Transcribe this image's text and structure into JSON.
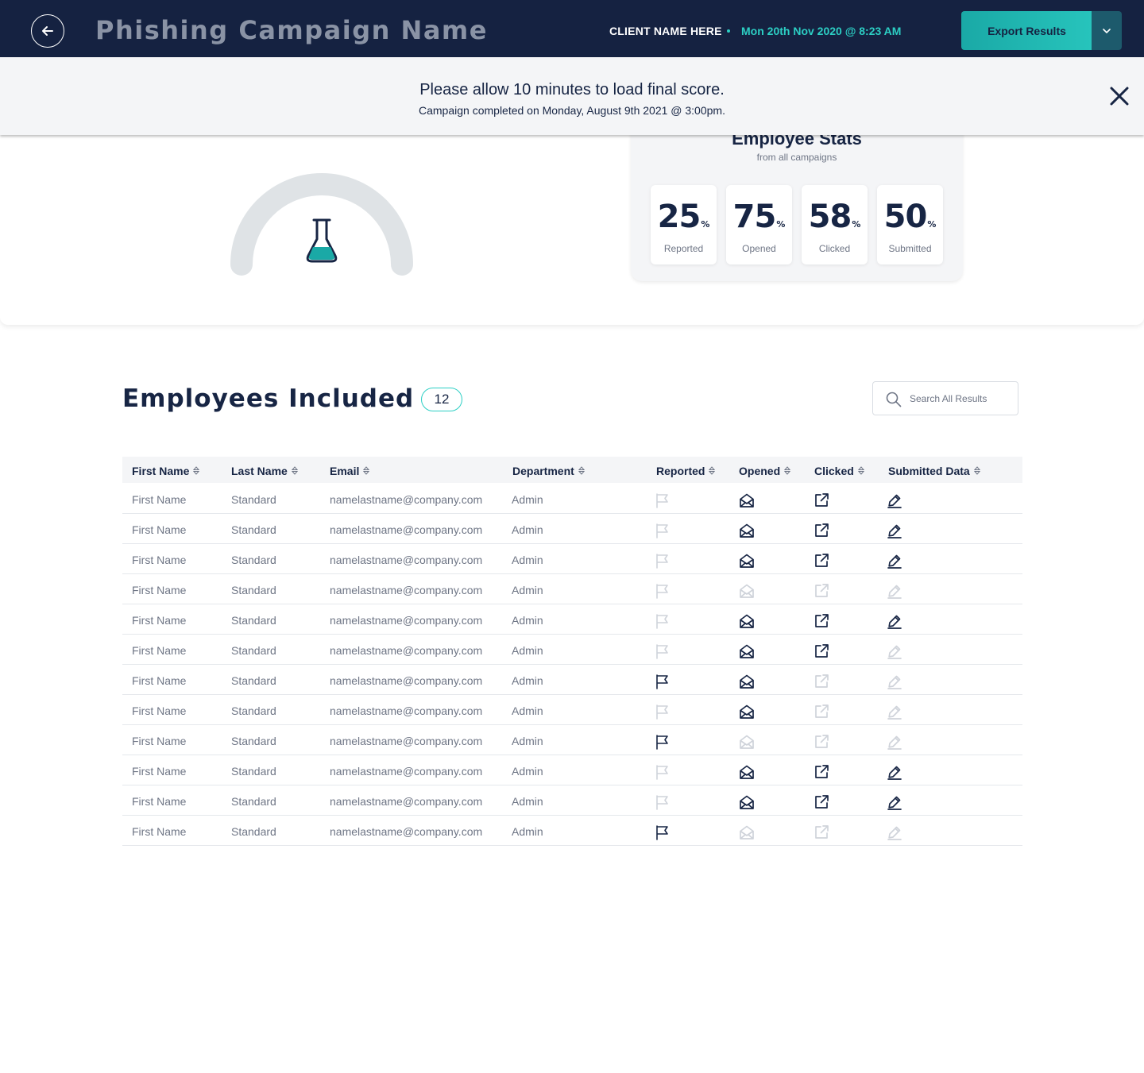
{
  "header": {
    "title": "Phishing Campaign Name",
    "client": "CLIENT NAME HERE",
    "date": "Mon 20th Nov 2020 @ 8:23 AM",
    "export_label": "Export Results",
    "icons": {
      "back": "arrow-left-icon",
      "caret": "chevron-down-icon"
    }
  },
  "banner": {
    "title": "Please allow 10 minutes to load final score.",
    "subtitle": "Campaign completed on Monday, August 9th 2021 @ 3:00pm.",
    "close_icon": "close-icon"
  },
  "gauge": {
    "icon": "flask-icon"
  },
  "stats": {
    "title": "Employee Stats",
    "subtitle": "from all campaigns",
    "items": [
      {
        "value": "25",
        "unit": "%",
        "label": "Reported"
      },
      {
        "value": "75",
        "unit": "%",
        "label": "Opened"
      },
      {
        "value": "58",
        "unit": "%",
        "label": "Clicked"
      },
      {
        "value": "50",
        "unit": "%",
        "label": "Submitted"
      }
    ]
  },
  "employees": {
    "title": "Employees Included",
    "count": "12",
    "search_placeholder": "Search All Results",
    "columns": [
      "First Name",
      "Last Name",
      "Email",
      "Department",
      "Reported",
      "Opened",
      "Clicked",
      "Submitted Data"
    ],
    "rows": [
      {
        "first": "First Name",
        "last": "Standard",
        "email": "namelastname@company.com",
        "dept": "Admin",
        "reported": false,
        "opened": true,
        "clicked": true,
        "submitted": true
      },
      {
        "first": "First Name",
        "last": "Standard",
        "email": "namelastname@company.com",
        "dept": "Admin",
        "reported": false,
        "opened": true,
        "clicked": true,
        "submitted": true
      },
      {
        "first": "First Name",
        "last": "Standard",
        "email": "namelastname@company.com",
        "dept": "Admin",
        "reported": false,
        "opened": true,
        "clicked": true,
        "submitted": true
      },
      {
        "first": "First Name",
        "last": "Standard",
        "email": "namelastname@company.com",
        "dept": "Admin",
        "reported": false,
        "opened": false,
        "clicked": false,
        "submitted": false
      },
      {
        "first": "First Name",
        "last": "Standard",
        "email": "namelastname@company.com",
        "dept": "Admin",
        "reported": false,
        "opened": true,
        "clicked": true,
        "submitted": true
      },
      {
        "first": "First Name",
        "last": "Standard",
        "email": "namelastname@company.com",
        "dept": "Admin",
        "reported": false,
        "opened": true,
        "clicked": true,
        "submitted": false
      },
      {
        "first": "First Name",
        "last": "Standard",
        "email": "namelastname@company.com",
        "dept": "Admin",
        "reported": true,
        "opened": true,
        "clicked": false,
        "submitted": false
      },
      {
        "first": "First Name",
        "last": "Standard",
        "email": "namelastname@company.com",
        "dept": "Admin",
        "reported": false,
        "opened": true,
        "clicked": false,
        "submitted": false
      },
      {
        "first": "First Name",
        "last": "Standard",
        "email": "namelastname@company.com",
        "dept": "Admin",
        "reported": true,
        "opened": false,
        "clicked": false,
        "submitted": false
      },
      {
        "first": "First Name",
        "last": "Standard",
        "email": "namelastname@company.com",
        "dept": "Admin",
        "reported": false,
        "opened": true,
        "clicked": true,
        "submitted": true
      },
      {
        "first": "First Name",
        "last": "Standard",
        "email": "namelastname@company.com",
        "dept": "Admin",
        "reported": false,
        "opened": true,
        "clicked": true,
        "submitted": true
      },
      {
        "first": "First Name",
        "last": "Standard",
        "email": "namelastname@company.com",
        "dept": "Admin",
        "reported": true,
        "opened": false,
        "clicked": false,
        "submitted": false
      }
    ],
    "icons": {
      "reported": "flag-icon",
      "opened": "envelope-open-icon",
      "clicked": "external-link-icon",
      "submitted": "pencil-icon",
      "sort": "sort-icon"
    }
  },
  "colors": {
    "navy": "#152241",
    "teal": "#2ccfc4",
    "text": "#172544",
    "muted": "#6e7585",
    "active_icon": "#172544",
    "inactive_icon": "#cfd3da"
  }
}
